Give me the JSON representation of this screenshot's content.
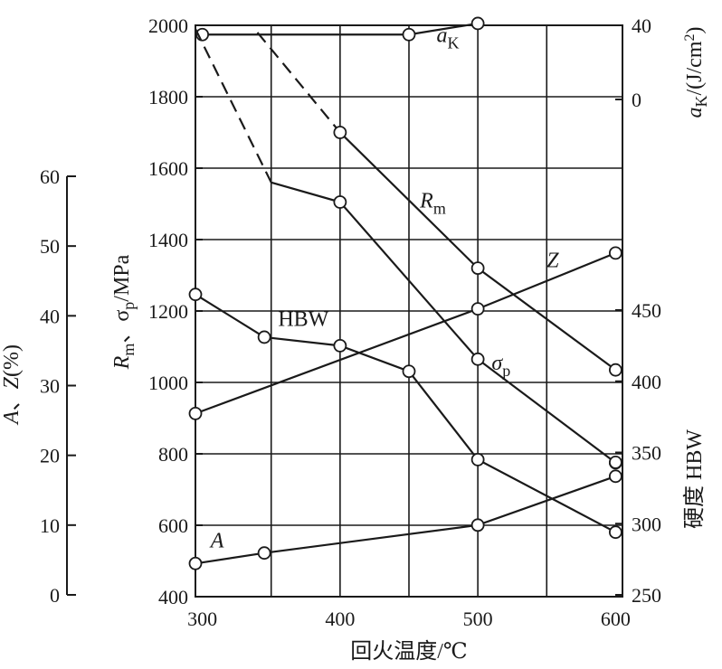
{
  "chart_data": {
    "type": "line",
    "x_axis": {
      "label": "回火温度/℃",
      "ticks": [
        "300",
        "400",
        "500",
        "600"
      ],
      "range": [
        295,
        605
      ]
    },
    "axes": {
      "strength": {
        "side": "left-inner",
        "range": [
          400,
          2000
        ],
        "ticks": [
          "400",
          "600",
          "800",
          "1000",
          "1200",
          "1400",
          "1600",
          "1800",
          "2000"
        ],
        "label_parts": [
          "R",
          "m",
          "、σ",
          "p",
          "/MPa"
        ]
      },
      "ductility": {
        "side": "left-outer",
        "range": [
          0,
          60
        ],
        "ticks": [
          "0",
          "10",
          "20",
          "30",
          "40",
          "50",
          "60"
        ],
        "label_parts": [
          "A",
          "、",
          "Z",
          "(%)"
        ]
      },
      "impact": {
        "side": "right-top",
        "range": [
          0,
          40
        ],
        "ticks": [
          "0",
          "40"
        ],
        "label_parts": [
          "a",
          "K",
          "/(J/cm",
          "2",
          ")"
        ]
      },
      "hardness": {
        "side": "right-bottom",
        "range": [
          250,
          450
        ],
        "ticks": [
          "250",
          "300",
          "350",
          "400",
          "450"
        ],
        "label": "硬度 HBW"
      }
    },
    "series": [
      {
        "name": "aK",
        "label_main": "a",
        "label_sub": "K",
        "axis": "impact",
        "points": [
          [
            300,
            35
          ],
          [
            450,
            35
          ],
          [
            500,
            41
          ]
        ],
        "markers": [
          [
            300,
            35
          ],
          [
            450,
            35
          ],
          [
            500,
            41
          ]
        ]
      },
      {
        "name": "Rm",
        "label_main": "R",
        "label_sub": "m",
        "axis": "strength",
        "dashed_lead": [
          [
            340,
            1980
          ],
          [
            400,
            1700
          ]
        ],
        "points": [
          [
            400,
            1700
          ],
          [
            500,
            1320
          ],
          [
            600,
            1035
          ]
        ],
        "markers": [
          [
            400,
            1700
          ],
          [
            500,
            1320
          ],
          [
            600,
            1035
          ]
        ]
      },
      {
        "name": "σp",
        "label_main": "σ",
        "label_sub": "p",
        "axis": "strength",
        "dashed_lead": [
          [
            295,
            1990
          ],
          [
            350,
            1560
          ]
        ],
        "points": [
          [
            350,
            1560
          ],
          [
            400,
            1505
          ],
          [
            500,
            1065
          ],
          [
            600,
            775
          ]
        ],
        "markers": [
          [
            400,
            1505
          ],
          [
            500,
            1065
          ],
          [
            600,
            775
          ]
        ]
      },
      {
        "name": "HBW",
        "label_main": "HBW",
        "label_sub": "",
        "axis": "hardness",
        "points": [
          [
            295,
            461
          ],
          [
            345,
            431
          ],
          [
            400,
            425
          ],
          [
            450,
            407
          ],
          [
            500,
            345
          ],
          [
            600,
            294
          ]
        ],
        "markers": [
          [
            295,
            461
          ],
          [
            345,
            431
          ],
          [
            400,
            425
          ],
          [
            450,
            407
          ],
          [
            500,
            345
          ],
          [
            600,
            294
          ]
        ]
      },
      {
        "name": "Z",
        "label_main": "Z",
        "label_sub": "",
        "axis": "ductility",
        "points": [
          [
            295,
            26
          ],
          [
            500,
            41
          ],
          [
            600,
            49
          ]
        ],
        "markers": [
          [
            295,
            26
          ],
          [
            500,
            41
          ],
          [
            600,
            49
          ]
        ]
      },
      {
        "name": "A",
        "label_main": "A",
        "label_sub": "",
        "axis": "ductility",
        "points": [
          [
            295,
            4.5
          ],
          [
            345,
            6
          ],
          [
            500,
            10
          ],
          [
            600,
            17
          ]
        ],
        "markers": [
          [
            295,
            4.5
          ],
          [
            345,
            6
          ],
          [
            500,
            10
          ],
          [
            600,
            17
          ],
          [
            600,
            19
          ]
        ]
      }
    ]
  }
}
